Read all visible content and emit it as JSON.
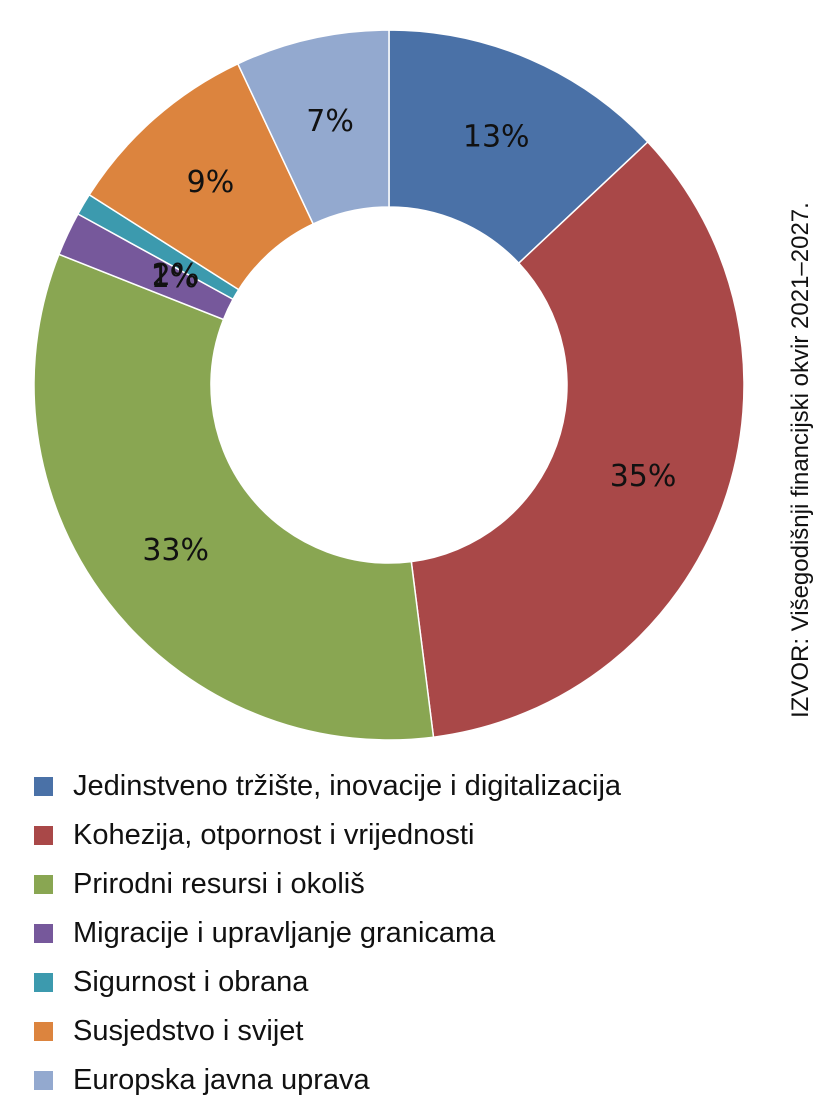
{
  "source_note": "IZVOR: Višegodišnji financijski okvir 2021–2027.",
  "chart_data": {
    "type": "pie",
    "variant": "donut",
    "start_angle_deg": 0,
    "direction": "clockwise",
    "legend_position": "bottom",
    "slices": [
      {
        "name": "Jedinstveno tržište, inovacije i digitalizacija",
        "value": 13,
        "label": "13%",
        "color": "#4A71A7"
      },
      {
        "name": "Kohezija, otpornost i vrijednosti",
        "value": 35,
        "label": "35%",
        "color": "#A94848"
      },
      {
        "name": "Prirodni resursi i okoliš",
        "value": 33,
        "label": "33%",
        "color": "#89A652"
      },
      {
        "name": "Migracije i upravljanje granicama",
        "value": 2,
        "label": "2%",
        "color": "#76589B"
      },
      {
        "name": "Sigurnost i obrana",
        "value": 1,
        "label": "1%",
        "color": "#3C9AAE"
      },
      {
        "name": "Susjedstvo i svijet",
        "value": 9,
        "label": "9%",
        "color": "#DC843E"
      },
      {
        "name": "Europska javna uprava",
        "value": 7,
        "label": "7%",
        "color": "#93A9CF"
      }
    ]
  }
}
